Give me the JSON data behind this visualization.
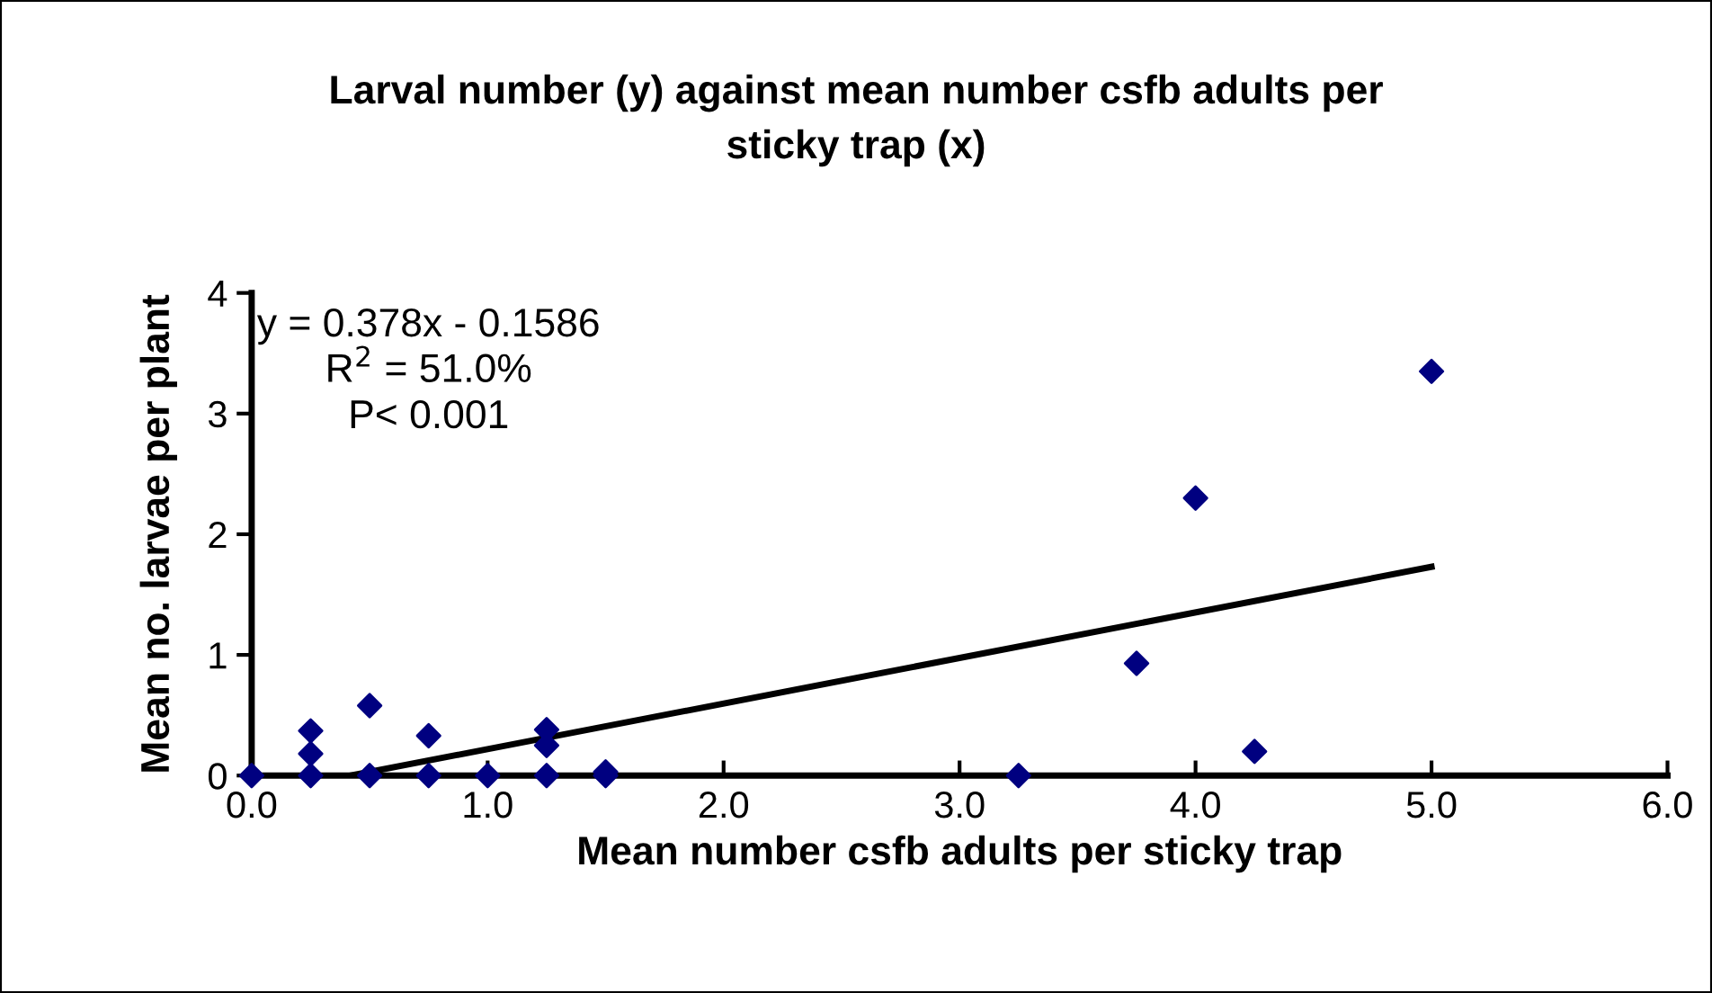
{
  "chart_data": {
    "type": "scatter",
    "title": "Larval number (y) against mean number csfb adults per\nsticky trap (x)",
    "xlabel": "Mean number csfb adults per sticky trap",
    "ylabel": "Mean no. larvae per plant",
    "grid": false,
    "legend": false,
    "series": [
      {
        "marker": "diamond",
        "color": "#000080",
        "x": [
          0,
          0.25,
          0.25,
          0.25,
          0.5,
          0.5,
          0.75,
          0.75,
          1.0,
          1.25,
          1.25,
          1.25,
          1.5,
          1.5,
          3.25,
          3.75,
          4.0,
          4.25,
          5.0
        ],
        "values": [
          0,
          0,
          0.18,
          0.37,
          0,
          0.58,
          0,
          0.33,
          0,
          0,
          0.25,
          0.38,
          0,
          0.03,
          0,
          0.93,
          2.3,
          0.2,
          3.35
        ]
      },
      {
        "type": "line",
        "marker": "none",
        "color": "#000000",
        "x": [
          0.42,
          5.0
        ],
        "values": [
          0,
          1.73
        ]
      }
    ],
    "annotations": [
      "y = 0.378x - 0.1586",
      "R$^{2}$ = 51.0%",
      "P< 0.001"
    ],
    "xlim": [
      0,
      6
    ],
    "xticks": [
      {
        "value": 0,
        "label": "0.0"
      },
      {
        "value": 1,
        "label": "1.0"
      },
      {
        "value": 2,
        "label": "2.0"
      },
      {
        "value": 3,
        "label": "3.0"
      },
      {
        "value": 4,
        "label": "4.0"
      },
      {
        "value": 5,
        "label": "5.0"
      },
      {
        "value": 6,
        "label": "6.0"
      }
    ],
    "ylim": [
      0,
      4
    ],
    "yticks": [
      0,
      1,
      2,
      3,
      4
    ]
  }
}
